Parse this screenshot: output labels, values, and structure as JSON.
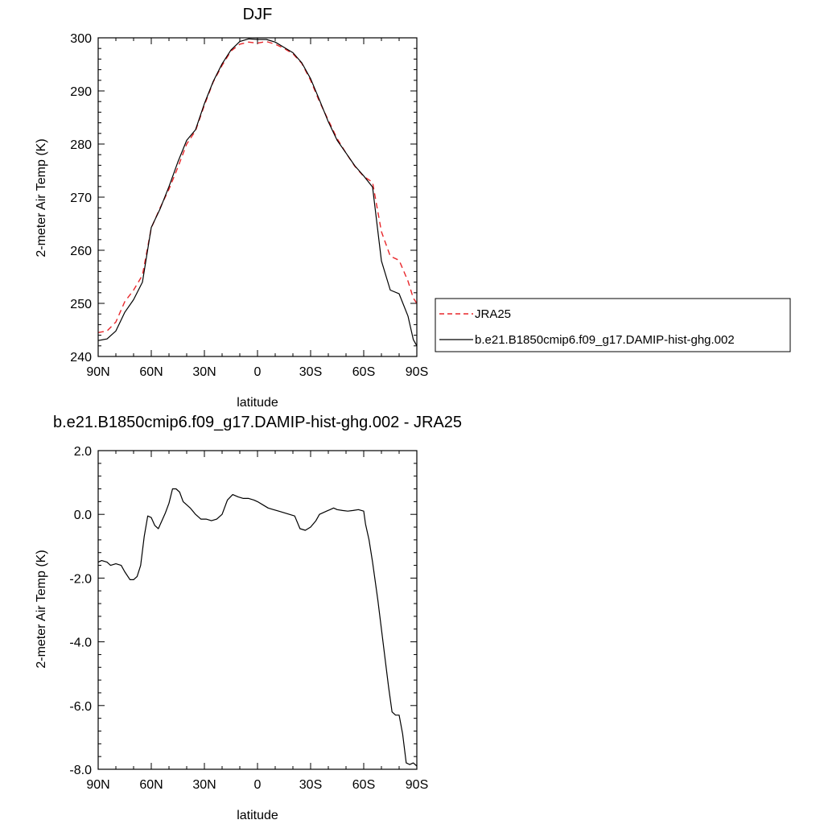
{
  "chart_data": [
    {
      "type": "line",
      "title": "DJF",
      "xlabel": "latitude",
      "ylabel": "2-meter Air Temp (K)",
      "xlim": [
        90,
        -90
      ],
      "ylim": [
        240,
        300
      ],
      "x_ticks": [
        {
          "value": 90,
          "label": "90N"
        },
        {
          "value": 60,
          "label": "60N"
        },
        {
          "value": 30,
          "label": "30N"
        },
        {
          "value": 0,
          "label": "0"
        },
        {
          "value": -30,
          "label": "30S"
        },
        {
          "value": -60,
          "label": "60S"
        },
        {
          "value": -90,
          "label": "90S"
        }
      ],
      "y_ticks": [
        {
          "value": 240,
          "label": "240"
        },
        {
          "value": 250,
          "label": "250"
        },
        {
          "value": 260,
          "label": "260"
        },
        {
          "value": 270,
          "label": "270"
        },
        {
          "value": 280,
          "label": "280"
        },
        {
          "value": 290,
          "label": "290"
        },
        {
          "value": 300,
          "label": "300"
        }
      ],
      "grid": false,
      "legend_position": "right",
      "series": [
        {
          "name": "JRA25",
          "color": "#e8262a",
          "dash": true,
          "x": [
            90,
            85,
            80,
            75,
            70,
            65,
            60,
            55,
            50,
            45,
            40,
            35,
            30,
            25,
            20,
            15,
            10,
            5,
            0,
            -5,
            -10,
            -15,
            -20,
            -25,
            -30,
            -35,
            -40,
            -45,
            -50,
            -55,
            -60,
            -65,
            -70,
            -75,
            -80,
            -85,
            -88,
            -90
          ],
          "values": [
            244.5,
            244.8,
            246.5,
            250.3,
            252.5,
            255.3,
            264.2,
            268.0,
            271.5,
            275.6,
            280.0,
            282.5,
            287.3,
            291.7,
            294.8,
            297.5,
            298.8,
            299.2,
            299.0,
            299.3,
            298.8,
            298.0,
            297.0,
            295.2,
            292.0,
            288.0,
            284.5,
            281.0,
            278.3,
            275.8,
            273.9,
            272.8,
            263.5,
            258.9,
            258.1,
            254.2,
            251.0,
            250.0
          ]
        },
        {
          "name": "b.e21.B1850cmip6.f09_g17.DAMIP-hist-ghg.002",
          "color": "#000000",
          "dash": false,
          "x": [
            90,
            85,
            80,
            75,
            70,
            65,
            60,
            55,
            50,
            45,
            40,
            35,
            30,
            25,
            20,
            15,
            10,
            5,
            0,
            -5,
            -10,
            -15,
            -20,
            -25,
            -30,
            -35,
            -40,
            -45,
            -50,
            -55,
            -60,
            -65,
            -70,
            -75,
            -80,
            -85,
            -88,
            -90
          ],
          "values": [
            243.0,
            243.3,
            244.8,
            248.3,
            250.7,
            254.0,
            264.3,
            267.8,
            272.0,
            276.6,
            280.7,
            282.7,
            287.6,
            291.8,
            295.1,
            297.7,
            299.3,
            299.8,
            299.7,
            299.7,
            299.2,
            298.2,
            297.2,
            295.3,
            292.3,
            288.3,
            284.2,
            280.7,
            278.3,
            275.9,
            274.0,
            271.9,
            258.0,
            252.5,
            251.8,
            247.6,
            243.2,
            242.0
          ]
        }
      ]
    },
    {
      "type": "line",
      "title": "b.e21.B1850cmip6.f09_g17.DAMIP-hist-ghg.002 - JRA25",
      "xlabel": "latitude",
      "ylabel": "2-meter Air Temp (K)",
      "xlim": [
        90,
        -90
      ],
      "ylim": [
        -8,
        2
      ],
      "x_ticks": [
        {
          "value": 90,
          "label": "90N"
        },
        {
          "value": 60,
          "label": "60N"
        },
        {
          "value": 30,
          "label": "30N"
        },
        {
          "value": 0,
          "label": "0"
        },
        {
          "value": -30,
          "label": "30S"
        },
        {
          "value": -60,
          "label": "60S"
        },
        {
          "value": -90,
          "label": "90S"
        }
      ],
      "y_ticks": [
        {
          "value": 2,
          "label": "2.0"
        },
        {
          "value": 0,
          "label": "0.0"
        },
        {
          "value": -2,
          "label": "-2.0"
        },
        {
          "value": -4,
          "label": "-4.0"
        },
        {
          "value": -6,
          "label": "-6.0"
        },
        {
          "value": -8,
          "label": "-8.0"
        }
      ],
      "grid": false,
      "series": [
        {
          "color": "#000000",
          "dash": false,
          "x": [
            90,
            88,
            85,
            83,
            80,
            77,
            75,
            72,
            70,
            68,
            66,
            64,
            62,
            60,
            58,
            56,
            54,
            52,
            50,
            48,
            46,
            44,
            42,
            40,
            38,
            35,
            32,
            29,
            26,
            23,
            20,
            17,
            14,
            11,
            8,
            5,
            2,
            0,
            -3,
            -6,
            -9,
            -12,
            -15,
            -18,
            -21,
            -24,
            -27,
            -30,
            -33,
            -35,
            -37,
            -39,
            -41,
            -43,
            -45,
            -48,
            -51,
            -54,
            -57,
            -60,
            -61,
            -63,
            -65,
            -68,
            -72,
            -74,
            -76,
            -78,
            -80,
            -82,
            -84,
            -86,
            -88,
            -90
          ],
          "values": [
            -1.5,
            -1.45,
            -1.5,
            -1.6,
            -1.55,
            -1.6,
            -1.8,
            -2.05,
            -2.05,
            -1.95,
            -1.6,
            -0.7,
            -0.05,
            -0.1,
            -0.35,
            -0.45,
            -0.2,
            0.05,
            0.35,
            0.8,
            0.8,
            0.7,
            0.4,
            0.3,
            0.2,
            0.0,
            -0.15,
            -0.15,
            -0.2,
            -0.15,
            0.0,
            0.45,
            0.62,
            0.55,
            0.5,
            0.5,
            0.45,
            0.4,
            0.3,
            0.2,
            0.15,
            0.1,
            0.05,
            0.0,
            -0.05,
            -0.45,
            -0.5,
            -0.4,
            -0.2,
            0.0,
            0.05,
            0.1,
            0.15,
            0.2,
            0.15,
            0.12,
            0.1,
            0.12,
            0.15,
            0.1,
            -0.3,
            -0.8,
            -1.5,
            -2.7,
            -4.5,
            -5.4,
            -6.2,
            -6.3,
            -6.3,
            -6.9,
            -7.8,
            -7.85,
            -7.8,
            -7.9
          ]
        }
      ]
    }
  ]
}
